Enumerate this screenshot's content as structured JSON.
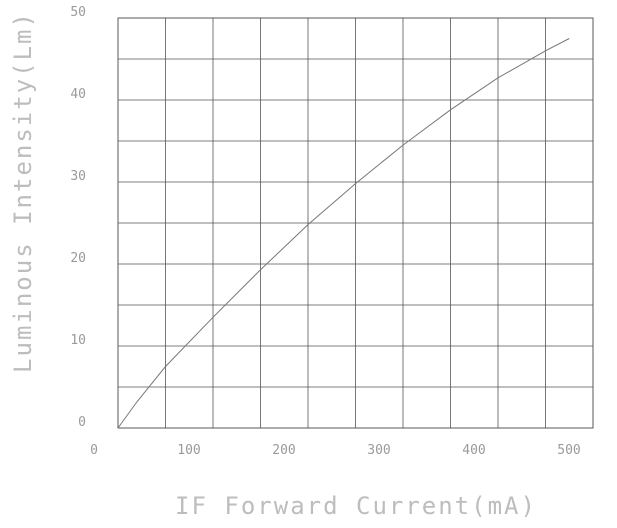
{
  "chart_data": {
    "type": "line",
    "title": "",
    "xlabel": "IF Forward Current(mA)",
    "ylabel": "Luminous Intensity(Lm)",
    "xlim": [
      0,
      500
    ],
    "ylim": [
      0,
      50
    ],
    "xticks": [
      0,
      100,
      200,
      300,
      400,
      500
    ],
    "yticks": [
      0,
      10,
      20,
      30,
      40,
      50
    ],
    "x_tick_labels": [
      "0",
      "100",
      "200",
      "300",
      "400",
      "500"
    ],
    "y_tick_labels": [
      "0",
      "10",
      "20",
      "30",
      "40",
      "50"
    ],
    "grid": true,
    "x_minor_divisions": 2,
    "y_minor_divisions": 2,
    "series": [
      {
        "x": [
          0,
          20,
          50,
          100,
          150,
          200,
          250,
          300,
          350,
          400,
          450,
          475
        ],
        "values": [
          0,
          3.2,
          7.5,
          13.5,
          19.3,
          24.8,
          29.8,
          34.5,
          38.8,
          42.7,
          46.0,
          47.5
        ]
      }
    ],
    "line_color": "#777777"
  }
}
